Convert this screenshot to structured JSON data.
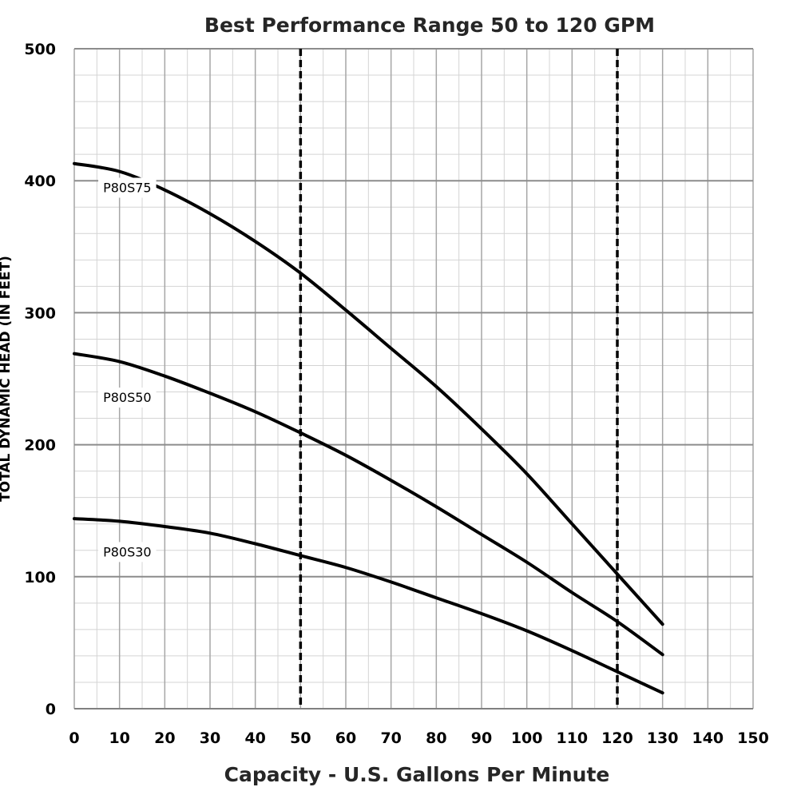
{
  "chart_data": {
    "type": "line",
    "title": "Best Performance Range 50 to 120 GPM",
    "xlabel": "Capacity - U.S. Gallons Per Minute",
    "ylabel": "TOTAL DYNAMIC HEAD (IN FEET)",
    "xlim": [
      0,
      150
    ],
    "ylim": [
      0,
      500
    ],
    "x_ticks": [
      "0",
      "10",
      "20",
      "30",
      "40",
      "50",
      "60",
      "70",
      "80",
      "90",
      "100",
      "110",
      "120",
      "130",
      "140",
      "150"
    ],
    "y_ticks": [
      "0",
      "100",
      "200",
      "300",
      "400",
      "500"
    ],
    "grid": true,
    "reference_lines_x": [
      50,
      120
    ],
    "x": [
      0,
      10,
      20,
      30,
      40,
      50,
      60,
      70,
      80,
      90,
      100,
      110,
      120,
      130
    ],
    "series": [
      {
        "name": "P80S75",
        "label_at": [
          5,
          395
        ],
        "values": [
          413,
          407,
          393,
          375,
          354,
          330,
          302,
          273,
          244,
          212,
          178,
          140,
          102,
          64
        ]
      },
      {
        "name": "P80S50",
        "label_at": [
          5,
          236
        ],
        "values": [
          269,
          263,
          252,
          239,
          225,
          209,
          192,
          173,
          153,
          132,
          111,
          88,
          66,
          41
        ]
      },
      {
        "name": "P80S30",
        "label_at": [
          5,
          119
        ],
        "values": [
          144,
          142,
          138,
          133,
          125,
          116,
          107,
          96,
          84,
          72,
          59,
          44,
          28,
          12
        ]
      }
    ]
  }
}
